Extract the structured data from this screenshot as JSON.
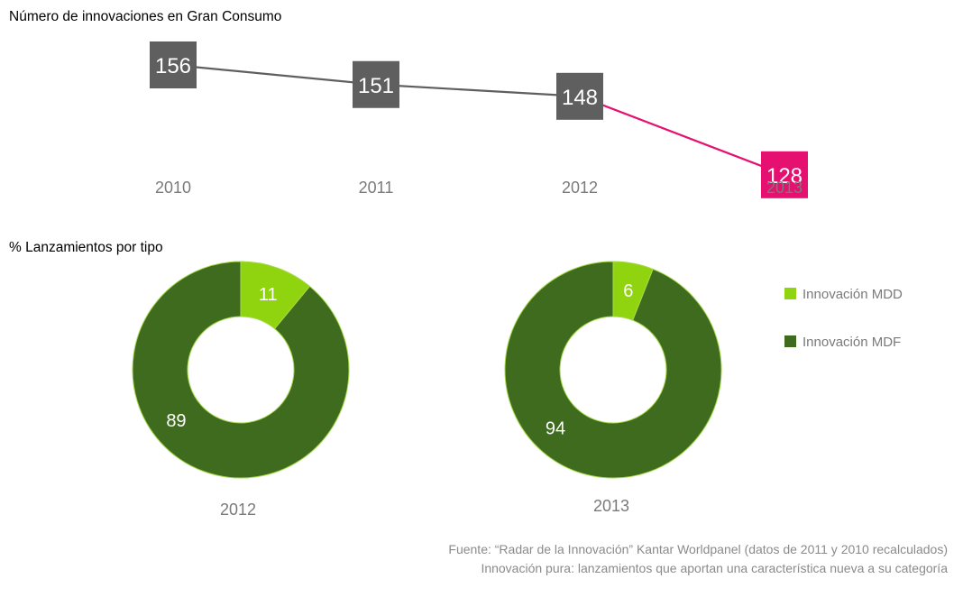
{
  "chart_data": [
    {
      "type": "line",
      "title": "Número de innovaciones en Gran Consumo",
      "categories": [
        "2010",
        "2011",
        "2012",
        "2013"
      ],
      "values": [
        156,
        151,
        148,
        128
      ],
      "colors": {
        "default": "#5f5f5f",
        "highlight": "#e5106f"
      },
      "highlight_index": 3
    },
    {
      "type": "pie",
      "title": "% Lanzamientos por tipo",
      "series": [
        {
          "name": "Innovación MDD",
          "color": "#90d40f"
        },
        {
          "name": "Innovación MDF",
          "color": "#3f6b1e"
        }
      ],
      "pies": [
        {
          "label": "2012",
          "values": [
            11,
            89
          ]
        },
        {
          "label": "2013",
          "values": [
            6,
            94
          ]
        }
      ]
    }
  ],
  "footer": {
    "source_line1": "Fuente: “Radar de la Innovación” Kantar Worldpanel (datos de 2011 y 2010 recalculados)",
    "source_line2": "Innovación pura: lanzamientos que aportan una característica nueva a su categoría"
  }
}
